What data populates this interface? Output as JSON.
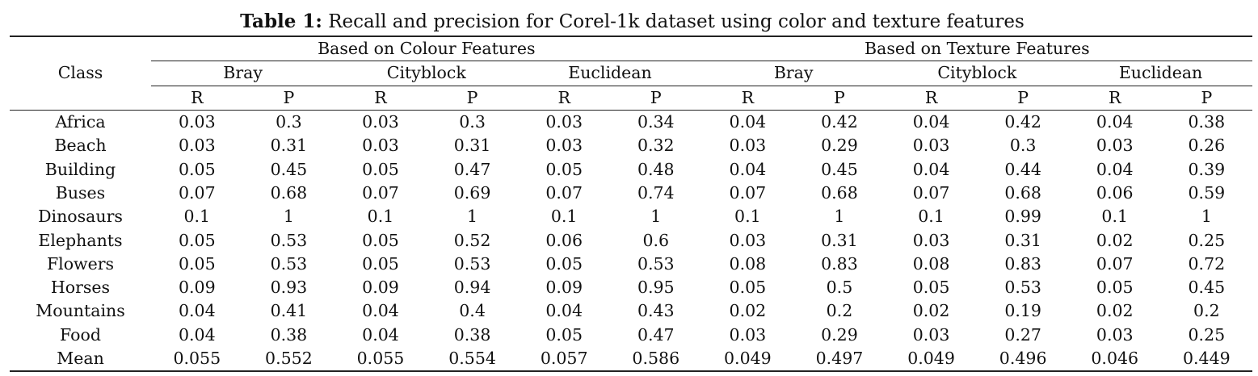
{
  "caption": {
    "label": "Table 1:",
    "text": " Recall and precision for Corel-1k dataset using color and texture features"
  },
  "header": {
    "class_label": "Class",
    "groups": [
      "Based on Colour Features",
      "Based on Texture Features"
    ],
    "metrics": [
      "Bray",
      "Cityblock",
      "Euclidean",
      "Bray",
      "Cityblock",
      "Euclidean"
    ],
    "subcols": [
      "R",
      "P",
      "R",
      "P",
      "R",
      "P",
      "R",
      "P",
      "R",
      "P",
      "R",
      "P"
    ]
  },
  "rows": [
    {
      "class": "Africa",
      "values": [
        "0.03",
        "0.3",
        "0.03",
        "0.3",
        "0.03",
        "0.34",
        "0.04",
        "0.42",
        "0.04",
        "0.42",
        "0.04",
        "0.38"
      ]
    },
    {
      "class": "Beach",
      "values": [
        "0.03",
        "0.31",
        "0.03",
        "0.31",
        "0.03",
        "0.32",
        "0.03",
        "0.29",
        "0.03",
        "0.3",
        "0.03",
        "0.26"
      ]
    },
    {
      "class": "Building",
      "values": [
        "0.05",
        "0.45",
        "0.05",
        "0.47",
        "0.05",
        "0.48",
        "0.04",
        "0.45",
        "0.04",
        "0.44",
        "0.04",
        "0.39"
      ]
    },
    {
      "class": "Buses",
      "values": [
        "0.07",
        "0.68",
        "0.07",
        "0.69",
        "0.07",
        "0.74",
        "0.07",
        "0.68",
        "0.07",
        "0.68",
        "0.06",
        "0.59"
      ]
    },
    {
      "class": "Dinosaurs",
      "values": [
        "0.1",
        "1",
        "0.1",
        "1",
        "0.1",
        "1",
        "0.1",
        "1",
        "0.1",
        "0.99",
        "0.1",
        "1"
      ]
    },
    {
      "class": "Elephants",
      "values": [
        "0.05",
        "0.53",
        "0.05",
        "0.52",
        "0.06",
        "0.6",
        "0.03",
        "0.31",
        "0.03",
        "0.31",
        "0.02",
        "0.25"
      ]
    },
    {
      "class": "Flowers",
      "values": [
        "0.05",
        "0.53",
        "0.05",
        "0.53",
        "0.05",
        "0.53",
        "0.08",
        "0.83",
        "0.08",
        "0.83",
        "0.07",
        "0.72"
      ]
    },
    {
      "class": "Horses",
      "values": [
        "0.09",
        "0.93",
        "0.09",
        "0.94",
        "0.09",
        "0.95",
        "0.05",
        "0.5",
        "0.05",
        "0.53",
        "0.05",
        "0.45"
      ]
    },
    {
      "class": "Mountains",
      "values": [
        "0.04",
        "0.41",
        "0.04",
        "0.4",
        "0.04",
        "0.43",
        "0.02",
        "0.2",
        "0.02",
        "0.19",
        "0.02",
        "0.2"
      ]
    },
    {
      "class": "Food",
      "values": [
        "0.04",
        "0.38",
        "0.04",
        "0.38",
        "0.05",
        "0.47",
        "0.03",
        "0.29",
        "0.03",
        "0.27",
        "0.03",
        "0.25"
      ]
    },
    {
      "class": "Mean",
      "values": [
        "0.055",
        "0.552",
        "0.055",
        "0.554",
        "0.057",
        "0.586",
        "0.049",
        "0.497",
        "0.049",
        "0.496",
        "0.046",
        "0.449"
      ]
    }
  ],
  "bold_cells": [
    {
      "row": 10,
      "col": 5
    },
    {
      "row": 10,
      "col": 7
    }
  ]
}
